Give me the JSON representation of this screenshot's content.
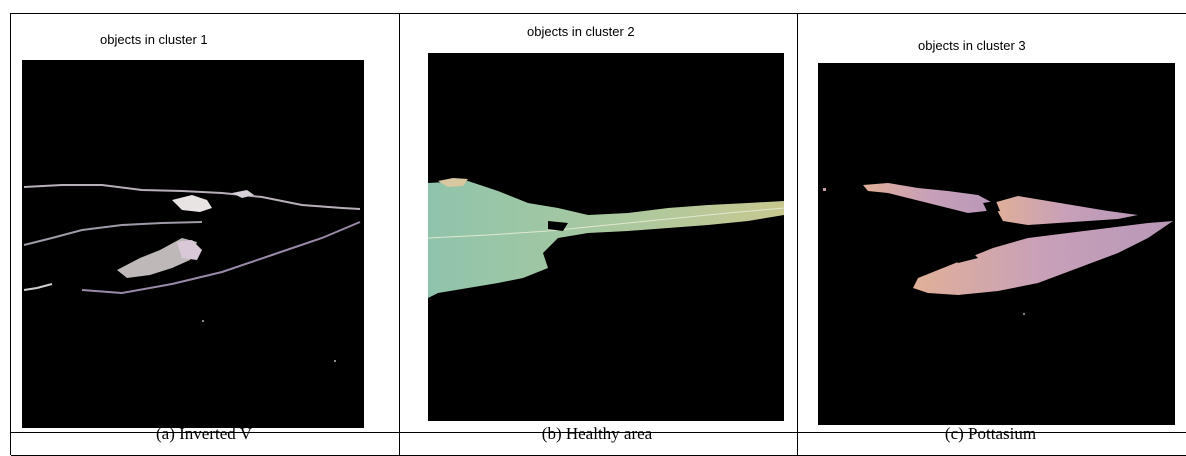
{
  "figure": {
    "panels": [
      {
        "title": "objects in cluster 1",
        "caption": "(a) Inverted V",
        "icon": "inverted-v-leaf-segments"
      },
      {
        "title": "objects in cluster 2",
        "caption": "(b) Healthy area",
        "icon": "healthy-leaf-segment"
      },
      {
        "title": "objects in cluster 3",
        "caption": "(c) Pottasium",
        "icon": "potassium-deficiency-leaf-segments"
      }
    ]
  },
  "colors": {
    "background": "#000000",
    "border": "#000000",
    "cluster1_leaf": "#c8c0c8",
    "cluster2_leaf": "#9cc8b0",
    "cluster3_leaf": "#c89ab0"
  }
}
